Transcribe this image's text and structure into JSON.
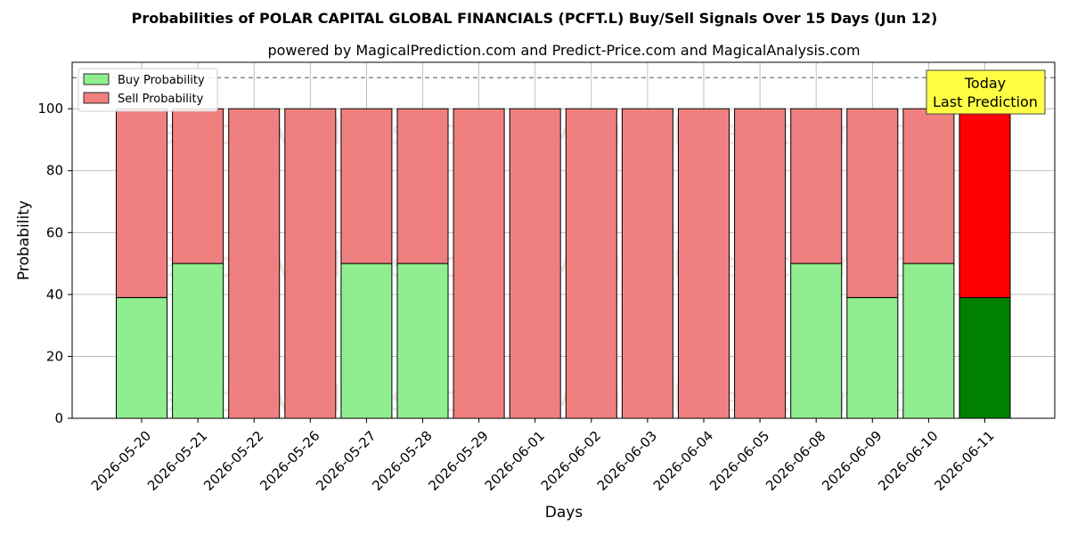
{
  "chart_data": {
    "type": "bar",
    "stacked": true,
    "title": "Probabilities of POLAR CAPITAL GLOBAL FINANCIALS (PCFT.L) Buy/Sell Signals Over 15 Days (Jun 12)",
    "subtitle": "powered by MagicalPrediction.com and Predict-Price.com and MagicalAnalysis.com",
    "xlabel": "Days",
    "ylabel": "Probability",
    "ylim": [
      0,
      115
    ],
    "yticks": [
      0,
      20,
      40,
      60,
      80,
      100
    ],
    "grid": true,
    "legend_position": "top-left",
    "reference_line": 110,
    "categories": [
      "2026-05-20",
      "2026-05-21",
      "2026-05-22",
      "2026-05-26",
      "2026-05-27",
      "2026-05-28",
      "2026-05-29",
      "2026-06-01",
      "2026-06-02",
      "2026-06-03",
      "2026-06-04",
      "2026-06-05",
      "2026-06-08",
      "2026-06-09",
      "2026-06-10",
      "2026-06-11"
    ],
    "series": [
      {
        "name": "Buy Probability",
        "color": "#90ee90",
        "highlight_color": "#008000",
        "values": [
          39,
          50,
          0,
          0,
          50,
          50,
          0,
          0,
          0,
          0,
          0,
          0,
          50,
          39,
          50,
          39
        ]
      },
      {
        "name": "Sell Probability",
        "color": "#f08080",
        "highlight_color": "#ff0000",
        "values": [
          61,
          50,
          100,
          100,
          50,
          50,
          100,
          100,
          100,
          100,
          100,
          100,
          50,
          61,
          50,
          61
        ]
      }
    ],
    "annotation": {
      "line1": "Today",
      "line2": "Last Prediction",
      "color": "#ffff44"
    },
    "watermark": [
      "MagicalAnalysis.com",
      "MagicalPrediction.com"
    ]
  }
}
